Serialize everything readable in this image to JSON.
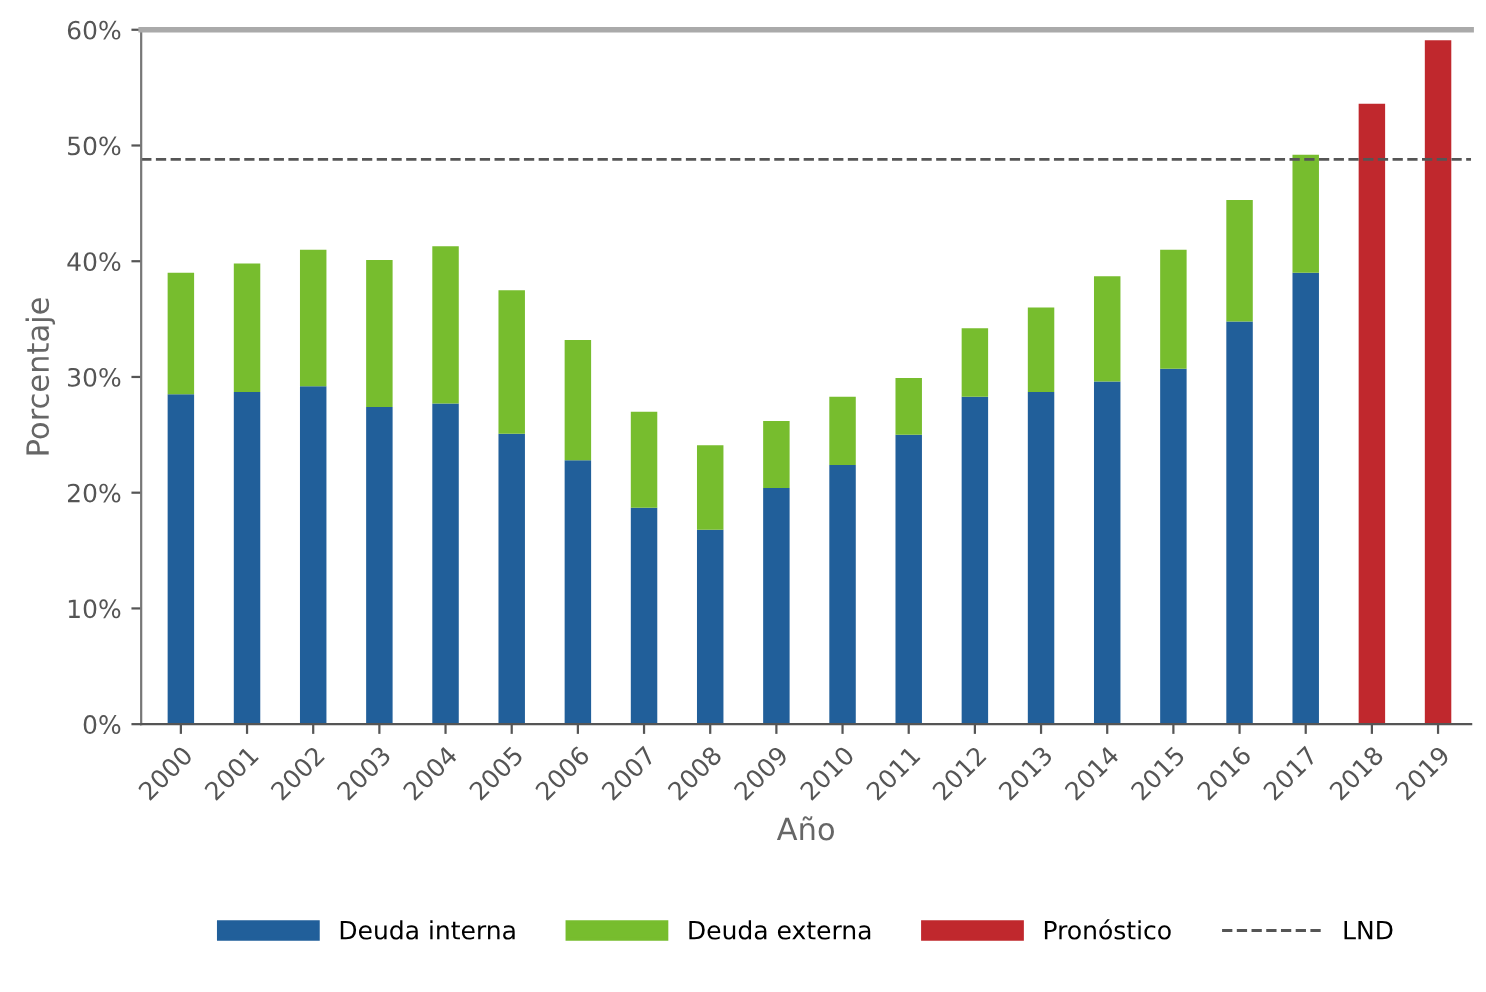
{
  "chart_data": {
    "type": "bar",
    "stacked": true,
    "xlabel": "Año",
    "ylabel": "Porcentaje",
    "categories": [
      "2000",
      "2001",
      "2002",
      "2003",
      "2004",
      "2005",
      "2006",
      "2007",
      "2008",
      "2009",
      "2010",
      "2011",
      "2012",
      "2013",
      "2014",
      "2015",
      "2016",
      "2017",
      "2018",
      "2019"
    ],
    "series": [
      {
        "name": "Deuda interna",
        "color": "#215f9a",
        "values": [
          28.5,
          28.7,
          29.2,
          27.4,
          27.7,
          25.1,
          22.8,
          18.7,
          16.8,
          20.4,
          22.4,
          25.0,
          28.3,
          28.7,
          29.6,
          30.7,
          34.8,
          39.0,
          null,
          null
        ]
      },
      {
        "name": "Deuda externa",
        "color": "#77bd2e",
        "values": [
          10.5,
          11.1,
          11.8,
          12.7,
          13.6,
          12.4,
          10.4,
          8.3,
          7.3,
          5.8,
          5.9,
          4.9,
          5.9,
          7.3,
          9.1,
          10.3,
          10.5,
          10.2,
          null,
          null
        ]
      },
      {
        "name": "Pronóstico",
        "color": "#c0282d",
        "values": [
          null,
          null,
          null,
          null,
          null,
          null,
          null,
          null,
          null,
          null,
          null,
          null,
          null,
          null,
          null,
          null,
          null,
          null,
          53.6,
          59.1
        ]
      }
    ],
    "ylim": [
      0,
      60
    ],
    "yticks": [
      {
        "value": 0,
        "label": "0%"
      },
      {
        "value": 10,
        "label": "10%"
      },
      {
        "value": 20,
        "label": "20%"
      },
      {
        "value": 30,
        "label": "30%"
      },
      {
        "value": 40,
        "label": "40%"
      },
      {
        "value": 50,
        "label": "50%"
      },
      {
        "value": 60,
        "label": "60%"
      }
    ],
    "ref_lines": [
      {
        "axis": "y",
        "value": 48.8,
        "label": "LND",
        "color": "#555555",
        "line_style": "dashed"
      }
    ],
    "grid": false,
    "legend": "bottom"
  }
}
